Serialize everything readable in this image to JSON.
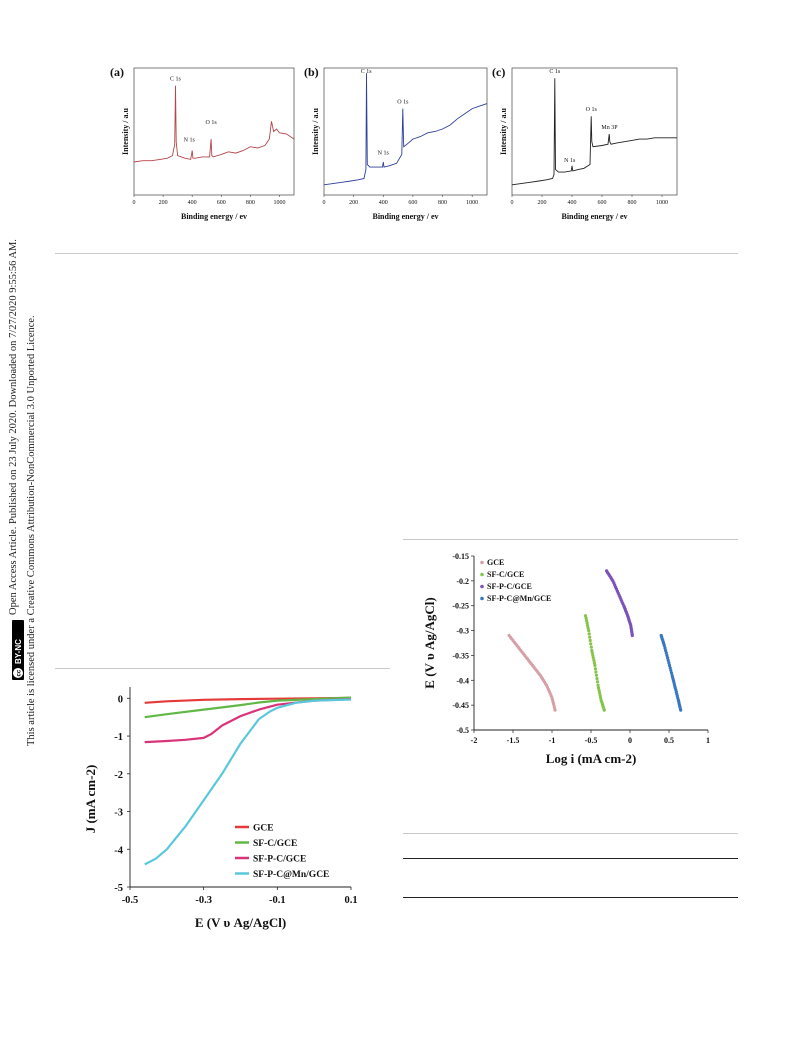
{
  "side_note": {
    "line1": "Open Access Article. Published on 23 July 2020. Downloaded on 7/27/2020 9:55:56 AM.",
    "line2": "This article is licensed under a Creative Commons Attribution-NonCommercial 3.0 Unported Licence.",
    "badge_cc": "cc",
    "badge_text": "BY-NC"
  },
  "chart_data": [
    {
      "id": "xps-a",
      "type": "line",
      "panel_label": "(a)",
      "xlabel": "Binding energy / ev",
      "ylabel": "Intensity / a.u",
      "xlim": [
        0,
        1100
      ],
      "ylim": [
        0,
        100
      ],
      "xticks": [
        "0",
        "200",
        "400",
        "600",
        "800",
        "1000"
      ],
      "color": "#b5454c",
      "series": [
        {
          "x": [
            0,
            60,
            120,
            180,
            230,
            265,
            280,
            285,
            290,
            300,
            350,
            390,
            400,
            405,
            420,
            470,
            520,
            530,
            535,
            545,
            600,
            650,
            700,
            750,
            800,
            850,
            900,
            930,
            945,
            960,
            980,
            1000,
            1050,
            1100
          ],
          "y": [
            26,
            27,
            27,
            28,
            29,
            31,
            40,
            86,
            42,
            31,
            29,
            28,
            35,
            29,
            29,
            30,
            30,
            44,
            31,
            30,
            32,
            34,
            33,
            35,
            38,
            37,
            39,
            44,
            58,
            50,
            52,
            49,
            48,
            44
          ]
        }
      ],
      "annotations": [
        {
          "text": "C 1s",
          "x": 285,
          "y": 90
        },
        {
          "text": "N 1s",
          "x": 380,
          "y": 42
        },
        {
          "text": "O 1s",
          "x": 530,
          "y": 56
        }
      ]
    },
    {
      "id": "xps-b",
      "type": "line",
      "panel_label": "(b)",
      "xlabel": "Binding energy / ev",
      "ylabel": "Intensity / a.u",
      "xlim": [
        0,
        1100
      ],
      "ylim": [
        0,
        100
      ],
      "xticks": [
        "0",
        "200",
        "400",
        "600",
        "800",
        "1000"
      ],
      "color": "#2f3f9e",
      "series": [
        {
          "x": [
            0,
            60,
            120,
            180,
            230,
            270,
            283,
            287,
            292,
            310,
            360,
            395,
            400,
            405,
            440,
            490,
            525,
            532,
            538,
            560,
            600,
            650,
            700,
            750,
            800,
            850,
            900,
            950,
            1000,
            1050,
            1100
          ],
          "y": [
            8,
            9,
            10,
            11,
            12,
            13,
            20,
            96,
            24,
            22,
            22,
            22,
            26,
            22,
            23,
            25,
            32,
            68,
            38,
            40,
            44,
            46,
            49,
            50,
            52,
            55,
            60,
            64,
            68,
            70,
            72
          ]
        }
      ],
      "annotations": [
        {
          "text": "C 1s",
          "x": 285,
          "y": 96
        },
        {
          "text": "N 1s",
          "x": 400,
          "y": 32
        },
        {
          "text": "O 1s",
          "x": 532,
          "y": 72
        }
      ]
    },
    {
      "id": "xps-c",
      "type": "line",
      "panel_label": "(c)",
      "xlabel": "Binding energy / ev",
      "ylabel": "Intensity / a.u",
      "xlim": [
        0,
        1100
      ],
      "ylim": [
        0,
        100
      ],
      "xticks": [
        "0",
        "200",
        "400",
        "600",
        "800",
        "1000"
      ],
      "color": "#222222",
      "series": [
        {
          "x": [
            0,
            60,
            120,
            180,
            230,
            270,
            280,
            285,
            290,
            310,
            350,
            395,
            400,
            405,
            440,
            480,
            520,
            528,
            532,
            540,
            600,
            640,
            648,
            652,
            660,
            700,
            750,
            800,
            850,
            900,
            950,
            1000,
            1050,
            1100
          ],
          "y": [
            8,
            9,
            10,
            11,
            12,
            13,
            16,
            92,
            20,
            18,
            18,
            19,
            23,
            19,
            20,
            21,
            24,
            62,
            42,
            38,
            39,
            40,
            48,
            42,
            40,
            41,
            42,
            43,
            44,
            44,
            45,
            45,
            45,
            45
          ]
        }
      ],
      "annotations": [
        {
          "text": "C 1s",
          "x": 285,
          "y": 96
        },
        {
          "text": "N 1s",
          "x": 385,
          "y": 26
        },
        {
          "text": "O 1s",
          "x": 528,
          "y": 66
        },
        {
          "text": "Mn 3P",
          "x": 650,
          "y": 52
        }
      ]
    },
    {
      "id": "lsv",
      "type": "line",
      "xlabel": "E (V υ Ag/AgCl)",
      "ylabel": "J (mA cm-2)",
      "xlim": [
        -0.5,
        0.1
      ],
      "ylim": [
        -5,
        0.3
      ],
      "xticks": [
        -0.5,
        -0.3,
        -0.1,
        0.1
      ],
      "xtick_labels": [
        "-0.5",
        "-0.3",
        "-0.1",
        "0.1"
      ],
      "yticks": [
        0,
        -1,
        -2,
        -3,
        -4,
        -5
      ],
      "ytick_labels": [
        "0",
        "-1",
        "-2",
        "-3",
        "-4",
        "-5"
      ],
      "legend_position": "bottom-right",
      "series": [
        {
          "name": "GCE",
          "color": "#e63a3a",
          "x": [
            -0.46,
            -0.4,
            -0.3,
            -0.2,
            -0.1,
            0.0,
            0.1
          ],
          "y": [
            -0.12,
            -0.08,
            -0.04,
            -0.02,
            -0.01,
            0.0,
            0.01
          ]
        },
        {
          "name": "SF-C/GCE",
          "color": "#62b846",
          "x": [
            -0.46,
            -0.4,
            -0.3,
            -0.2,
            -0.15,
            -0.1,
            0.0,
            0.1
          ],
          "y": [
            -0.5,
            -0.42,
            -0.3,
            -0.18,
            -0.11,
            -0.06,
            -0.02,
            0.02
          ]
        },
        {
          "name": "SF-P-C/GCE",
          "color": "#d9347a",
          "x": [
            -0.46,
            -0.4,
            -0.35,
            -0.3,
            -0.28,
            -0.25,
            -0.2,
            -0.15,
            -0.1,
            0.0,
            0.1
          ],
          "y": [
            -1.16,
            -1.13,
            -1.1,
            -1.05,
            -0.95,
            -0.72,
            -0.47,
            -0.3,
            -0.17,
            -0.06,
            -0.02
          ]
        },
        {
          "name": "SF-P-C@Mn/GCE",
          "color": "#5ac8dc",
          "x": [
            -0.46,
            -0.43,
            -0.4,
            -0.35,
            -0.3,
            -0.25,
            -0.2,
            -0.15,
            -0.12,
            -0.1,
            -0.05,
            0.0,
            0.1
          ],
          "y": [
            -4.4,
            -4.25,
            -4.0,
            -3.4,
            -2.7,
            -2.0,
            -1.2,
            -0.55,
            -0.35,
            -0.25,
            -0.12,
            -0.06,
            -0.03
          ]
        }
      ]
    },
    {
      "id": "tafel",
      "type": "scatter",
      "xlabel": "Log i (mA cm-2)",
      "ylabel": "E (V υ Ag/AgCl)",
      "xlim": [
        -2,
        1
      ],
      "ylim": [
        -0.5,
        -0.15
      ],
      "xticks": [
        -2,
        -1.5,
        -1,
        -0.5,
        0,
        0.5,
        1
      ],
      "xtick_labels": [
        "-2",
        "-1.5",
        "-1",
        "-0.5",
        "0",
        "0.5",
        "1"
      ],
      "yticks": [
        -0.15,
        -0.2,
        -0.25,
        -0.3,
        -0.35,
        -0.4,
        -0.45,
        -0.5
      ],
      "ytick_labels": [
        "-0.15",
        "-0.2",
        "-0.25",
        "-0.3",
        "-0.35",
        "-0.4",
        "-0.45",
        "-0.5"
      ],
      "legend_position": "top-left",
      "series": [
        {
          "name": "GCE",
          "color": "#d6a0a8",
          "x": [
            -1.55,
            -1.45,
            -1.35,
            -1.25,
            -1.15,
            -1.07,
            -1.0,
            -0.96
          ],
          "y": [
            -0.31,
            -0.33,
            -0.35,
            -0.37,
            -0.39,
            -0.41,
            -0.435,
            -0.46
          ]
        },
        {
          "name": "SF-C/GCE",
          "color": "#86c44a",
          "x": [
            -0.57,
            -0.53,
            -0.49,
            -0.45,
            -0.41,
            -0.37,
            -0.33
          ],
          "y": [
            -0.27,
            -0.3,
            -0.34,
            -0.37,
            -0.41,
            -0.44,
            -0.46
          ]
        },
        {
          "name": "SF-P-C/GCE",
          "color": "#7d52b8",
          "x": [
            -0.3,
            -0.22,
            -0.15,
            -0.08,
            -0.03,
            0.01,
            0.03
          ],
          "y": [
            -0.18,
            -0.2,
            -0.225,
            -0.25,
            -0.27,
            -0.29,
            -0.31
          ]
        },
        {
          "name": "SF-P-C@Mn/GCE",
          "color": "#3778c0",
          "x": [
            0.4,
            0.44,
            0.49,
            0.54,
            0.58,
            0.62,
            0.65
          ],
          "y": [
            -0.31,
            -0.33,
            -0.36,
            -0.39,
            -0.415,
            -0.44,
            -0.46
          ]
        }
      ]
    }
  ]
}
